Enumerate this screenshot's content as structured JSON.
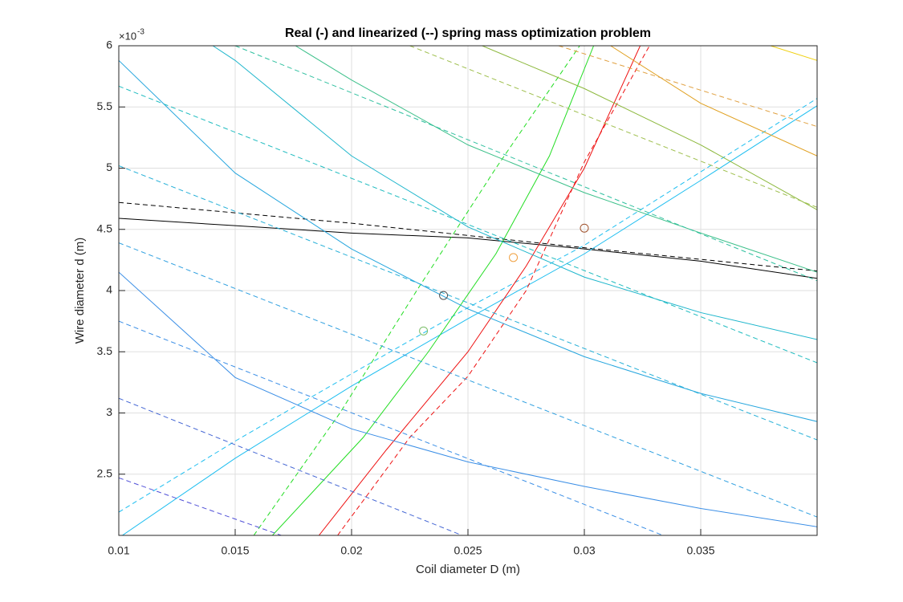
{
  "chart_data": {
    "type": "line",
    "title": "Real (-) and linearized (--) spring mass optimization problem",
    "xlabel": "Coil diameter D (m)",
    "ylabel": "Wire diameter d (m)",
    "y_multiplier": {
      "base": "×10",
      "exponent": "-3"
    },
    "xlim": [
      0.01,
      0.04
    ],
    "ylim": [
      2,
      6
    ],
    "xticks": [
      0.01,
      0.015,
      0.02,
      0.025,
      0.03,
      0.035
    ],
    "yticks": [
      2.5,
      3,
      3.5,
      4,
      4.5,
      5,
      5.5,
      6
    ],
    "grid": true,
    "series": [
      {
        "color": "#000000",
        "style": "solid",
        "x": [
          0.01,
          0.015,
          0.02,
          0.025,
          0.03,
          0.035,
          0.04
        ],
        "values": [
          4.59,
          4.53,
          4.47,
          4.43,
          4.34,
          4.24,
          4.1
        ]
      },
      {
        "color": "#000000",
        "style": "dashed",
        "x": [
          0.01,
          0.02,
          0.03,
          0.04
        ],
        "values": [
          4.72,
          4.55,
          4.35,
          4.16
        ]
      },
      {
        "color": "#1ebef0",
        "style": "solid",
        "x": [
          0.01,
          0.015,
          0.02,
          0.025,
          0.03,
          0.035,
          0.04
        ],
        "values": [
          1.98,
          2.63,
          3.22,
          3.77,
          4.3,
          4.9,
          5.51
        ]
      },
      {
        "color": "#1ebef0",
        "style": "dashed",
        "x": [
          0.01,
          0.015,
          0.02,
          0.025,
          0.03,
          0.035,
          0.04
        ],
        "values": [
          2.19,
          2.77,
          3.32,
          3.86,
          4.37,
          4.97,
          5.57
        ]
      },
      {
        "color": "#22dd22",
        "style": "solid",
        "x": [
          0.0166,
          0.0205,
          0.0233,
          0.0262,
          0.0285,
          0.0304
        ],
        "values": [
          2.0,
          2.8,
          3.5,
          4.3,
          5.1,
          6.0
        ]
      },
      {
        "color": "#22dd22",
        "style": "dashed",
        "x": [
          0.0158,
          0.0195,
          0.0228,
          0.0262,
          0.0298
        ],
        "values": [
          2.0,
          3.0,
          4.0,
          5.0,
          6.0
        ]
      },
      {
        "color": "#ee1111",
        "style": "solid",
        "x": [
          0.0186,
          0.0215,
          0.025,
          0.0275,
          0.03,
          0.0324
        ],
        "values": [
          2.0,
          2.7,
          3.5,
          4.2,
          5.0,
          6.0
        ]
      },
      {
        "color": "#ee1111",
        "style": "dashed",
        "x": [
          0.0194,
          0.0225,
          0.025,
          0.0275,
          0.03,
          0.0328
        ],
        "values": [
          2.0,
          2.8,
          3.3,
          4.0,
          5.05,
          6.0
        ]
      },
      {
        "color": "#3a8ee6",
        "style": "solid",
        "x": [
          0.01,
          0.015,
          0.02,
          0.025,
          0.03,
          0.035,
          0.04
        ],
        "values": [
          4.15,
          3.29,
          2.87,
          2.6,
          2.4,
          2.22,
          2.07
        ]
      },
      {
        "color": "#26a6de",
        "style": "solid",
        "x": [
          0.01,
          0.015,
          0.02,
          0.025,
          0.03,
          0.035,
          0.04
        ],
        "values": [
          5.88,
          4.96,
          4.34,
          3.85,
          3.46,
          3.16,
          2.93
        ]
      },
      {
        "color": "#1eb6cc",
        "style": "solid",
        "x": [
          0.01404,
          0.015,
          0.02,
          0.025,
          0.03,
          0.035,
          0.04
        ],
        "values": [
          6.0,
          5.88,
          5.1,
          4.52,
          4.11,
          3.82,
          3.6
        ]
      },
      {
        "color": "#3cc08a",
        "style": "solid",
        "x": [
          0.01759,
          0.02,
          0.025,
          0.03,
          0.035,
          0.04
        ],
        "values": [
          6.0,
          5.72,
          5.19,
          4.8,
          4.47,
          4.15
        ]
      },
      {
        "color": "#8cb83c",
        "style": "solid",
        "x": [
          0.02561,
          0.03,
          0.035,
          0.04
        ],
        "values": [
          6.0,
          5.65,
          5.19,
          4.66
        ]
      },
      {
        "color": "#e0a020",
        "style": "solid",
        "x": [
          0.03113,
          0.035,
          0.04
        ],
        "values": [
          6.0,
          5.53,
          5.1
        ]
      },
      {
        "color": "#f0d010",
        "style": "solid",
        "x": [
          0.038,
          0.04
        ],
        "values": [
          6.0,
          5.88
        ]
      },
      {
        "color": "#5050d8",
        "style": "dashed",
        "x": [
          0.01,
          0.01698
        ],
        "values": [
          2.47,
          2.0
        ]
      },
      {
        "color": "#4466d4",
        "style": "dashed",
        "x": [
          0.01,
          0.02475
        ],
        "values": [
          3.12,
          2.0
        ]
      },
      {
        "color": "#3a8ee6",
        "style": "dashed",
        "x": [
          0.01,
          0.03338
        ],
        "values": [
          3.75,
          2.0
        ]
      },
      {
        "color": "#30a0e0",
        "style": "dashed",
        "x": [
          0.01,
          0.04
        ],
        "values": [
          4.39,
          2.15
        ]
      },
      {
        "color": "#26b0d8",
        "style": "dashed",
        "x": [
          0.01,
          0.04
        ],
        "values": [
          5.02,
          2.78
        ]
      },
      {
        "color": "#20bcc0",
        "style": "dashed",
        "x": [
          0.01,
          0.04
        ],
        "values": [
          5.67,
          3.41
        ]
      },
      {
        "color": "#30c0a0",
        "style": "dashed",
        "x": [
          0.015,
          0.04
        ],
        "values": [
          6.0,
          4.08
        ]
      },
      {
        "color": "#a0c050",
        "style": "dashed",
        "x": [
          0.0225,
          0.04
        ],
        "values": [
          6.0,
          4.68
        ]
      },
      {
        "color": "#e0a040",
        "style": "dashed",
        "x": [
          0.02889,
          0.04
        ],
        "values": [
          6.0,
          5.34
        ]
      }
    ],
    "markers": {
      "x": [
        0.02395,
        0.02309,
        0.02695,
        0.03
      ],
      "values": [
        3.96,
        3.67,
        4.27,
        4.51
      ],
      "colors": [
        "#505050",
        "#7cbf6a",
        "#f0a040",
        "#a0522d"
      ]
    }
  }
}
